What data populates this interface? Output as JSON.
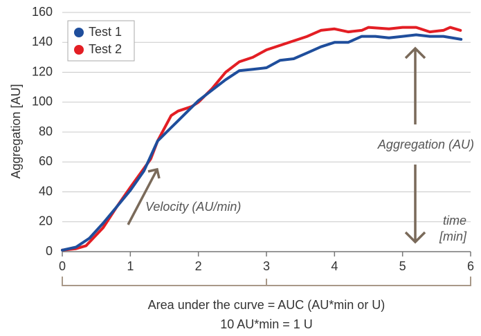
{
  "chart_data": {
    "type": "line",
    "y_label": "Aggregation [AU]",
    "xlim": [
      0,
      6
    ],
    "xticks": [
      0,
      1,
      2,
      3,
      4,
      5,
      6
    ],
    "ylim": [
      0,
      160
    ],
    "yticks": [
      0,
      20,
      40,
      60,
      80,
      100,
      120,
      140,
      160
    ],
    "grid": true,
    "legend": "top-left",
    "series": [
      {
        "name": "Test 1",
        "color": "#1f4e9c",
        "x": [
          0,
          0.2,
          0.4,
          0.6,
          0.8,
          1.0,
          1.2,
          1.4,
          1.6,
          1.8,
          2.0,
          2.2,
          2.4,
          2.6,
          2.8,
          3.0,
          3.2,
          3.4,
          3.6,
          3.8,
          4.0,
          4.2,
          4.4,
          4.6,
          4.8,
          5.0,
          5.2,
          5.4,
          5.6,
          5.86
        ],
        "values": [
          1,
          3,
          9,
          19,
          30,
          41,
          54,
          74,
          83,
          92,
          101,
          108,
          115,
          121,
          122,
          123,
          128,
          129,
          133,
          137,
          140,
          140,
          144,
          144,
          143,
          144,
          145,
          144,
          144,
          142
        ]
      },
      {
        "name": "Test 2",
        "color": "#e31e24",
        "x": [
          0,
          0.2,
          0.35,
          0.6,
          0.8,
          1.0,
          1.3,
          1.4,
          1.6,
          1.7,
          1.9,
          2.0,
          2.2,
          2.4,
          2.6,
          2.8,
          3.0,
          3.2,
          3.4,
          3.6,
          3.8,
          4.0,
          4.2,
          4.4,
          4.5,
          4.8,
          5.0,
          5.2,
          5.4,
          5.6,
          5.7,
          5.85
        ],
        "values": [
          1,
          2,
          4,
          16,
          30,
          43,
          62,
          74,
          91,
          94,
          97,
          100,
          109,
          120,
          127,
          130,
          135,
          138,
          141,
          144,
          148,
          149,
          147,
          148,
          150,
          149,
          150,
          150,
          147,
          148,
          150,
          148
        ]
      }
    ],
    "annotations": [
      "Velocity (AU/min)",
      "Aggregation (AU)",
      "time",
      "[min]",
      "Area under the curve = AUC (AU*min or U)",
      "10 AU*min = 1 U"
    ]
  }
}
